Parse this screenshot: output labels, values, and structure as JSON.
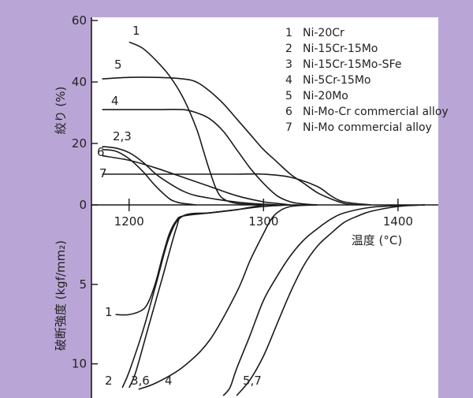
{
  "colors": {
    "background": "#b9a6d6",
    "plot": "#ffffff",
    "ink": "#1a1a1a"
  },
  "chart_data": [
    {
      "type": "line",
      "panel": "top",
      "ylabel": "絞り (%)",
      "ylim": [
        0,
        60
      ],
      "yticks": [
        "0",
        "20",
        "40",
        "60"
      ],
      "xlim": [
        1172,
        1430
      ],
      "legend": [
        {
          "num": "1",
          "name": "Ni-20Cr"
        },
        {
          "num": "2",
          "name": "Ni-15Cr-15Mo"
        },
        {
          "num": "3",
          "name": "Ni-15Cr-15Mo-SFe"
        },
        {
          "num": "4",
          "name": "Ni-5Cr-15Mo"
        },
        {
          "num": "5",
          "name": "Ni-20Mo"
        },
        {
          "num": "6",
          "name": "Ni-Mo-Cr commercial alloy"
        },
        {
          "num": "7",
          "name": "Ni-Mo commercial alloy"
        }
      ],
      "series": [
        {
          "name": "1",
          "label": "1",
          "x": [
            1200,
            1210,
            1220,
            1230,
            1240,
            1250,
            1255,
            1260,
            1265,
            1270,
            1280,
            1300
          ],
          "y": [
            53,
            51,
            47,
            42,
            35,
            25,
            18,
            11,
            5,
            2,
            0.5,
            0
          ]
        },
        {
          "name": "2",
          "label": "2,3",
          "x": [
            1180,
            1190,
            1200,
            1210,
            1220,
            1230,
            1235,
            1240,
            1250
          ],
          "y": [
            18,
            17.5,
            15,
            11,
            6,
            2,
            1,
            0.5,
            0
          ]
        },
        {
          "name": "3",
          "label": "",
          "x": [
            1180,
            1190,
            1200,
            1210,
            1220,
            1230,
            1240,
            1250,
            1270,
            1290,
            1310
          ],
          "y": [
            19,
            18.5,
            17,
            14,
            10,
            7,
            4.5,
            3,
            1.5,
            0.5,
            0
          ]
        },
        {
          "name": "4",
          "label": "4",
          "x": [
            1180,
            1200,
            1220,
            1240,
            1250,
            1260,
            1270,
            1280,
            1290,
            1300,
            1310,
            1320,
            1330,
            1340
          ],
          "y": [
            31,
            31,
            31,
            31,
            30,
            28,
            24,
            18,
            12,
            7,
            3,
            1,
            0.3,
            0
          ]
        },
        {
          "name": "5",
          "label": "5",
          "x": [
            1180,
            1200,
            1220,
            1240,
            1250,
            1260,
            1270,
            1280,
            1290,
            1300,
            1310,
            1320,
            1330,
            1340,
            1350,
            1360,
            1370
          ],
          "y": [
            41,
            41.5,
            41.5,
            41,
            40,
            37,
            33,
            28,
            23,
            18,
            14,
            10,
            7,
            4,
            2,
            0.5,
            0
          ]
        },
        {
          "name": "6",
          "label": "6",
          "x": [
            1180,
            1200,
            1220,
            1240,
            1260,
            1280,
            1300,
            1310,
            1320
          ],
          "y": [
            16,
            14.5,
            12,
            9,
            6,
            3,
            1,
            0.5,
            0
          ]
        },
        {
          "name": "7",
          "label": "7",
          "x": [
            1180,
            1200,
            1220,
            1240,
            1260,
            1280,
            1300,
            1320,
            1340,
            1350,
            1360,
            1380
          ],
          "y": [
            10,
            10,
            10,
            10,
            10,
            10,
            10,
            9,
            6,
            3,
            1,
            0
          ]
        }
      ]
    },
    {
      "type": "line",
      "panel": "bottom",
      "ylabel": "破断強度 (kgf/mm₂)",
      "xlabel": "温度 (°C)",
      "ylim": [
        0,
        12
      ],
      "yticks": [
        "5",
        "10"
      ],
      "xlim": [
        1172,
        1430
      ],
      "xticks": [
        "1200",
        "1300",
        "1400"
      ],
      "series": [
        {
          "name": "1",
          "label": "1",
          "x": [
            1190,
            1200,
            1210,
            1215,
            1220,
            1225,
            1230,
            1235,
            1240,
            1260,
            1280,
            1300,
            1320
          ],
          "y": [
            6.9,
            6.9,
            6.6,
            6.0,
            4.8,
            3.2,
            1.8,
            1.0,
            0.7,
            0.5,
            0.3,
            0.1,
            0
          ]
        },
        {
          "name": "2",
          "label": "2",
          "x": [
            1195,
            1200,
            1210,
            1220,
            1230,
            1240,
            1260,
            1280,
            1300
          ],
          "y": [
            11.5,
            10.5,
            8.0,
            5.0,
            2.0,
            0.7,
            0.5,
            0.3,
            0
          ]
        },
        {
          "name": "3",
          "label": "3,6",
          "x": [
            1200,
            1205,
            1215,
            1225,
            1235,
            1240,
            1260,
            1280,
            1300
          ],
          "y": [
            11.5,
            10.5,
            7.5,
            4.5,
            1.5,
            0.7,
            0.5,
            0.3,
            0
          ]
        },
        {
          "name": "4",
          "label": "4",
          "x": [
            1207,
            1220,
            1240,
            1260,
            1280,
            1290,
            1300,
            1305,
            1310,
            1320,
            1340
          ],
          "y": [
            11.6,
            11.2,
            10.2,
            8.5,
            5.5,
            3.5,
            1.8,
            1.0,
            0.5,
            0.1,
            0
          ]
        },
        {
          "name": "5",
          "label": "5,7",
          "x": [
            1270,
            1275,
            1280,
            1290,
            1300,
            1310,
            1320,
            1330,
            1340,
            1350,
            1360,
            1380,
            1400,
            1420
          ],
          "y": [
            12,
            11.5,
            10.3,
            8.2,
            6.0,
            4.5,
            3.2,
            2.2,
            1.5,
            0.9,
            0.5,
            0.15,
            0.05,
            0
          ]
        },
        {
          "name": "7",
          "label": "",
          "x": [
            1280,
            1290,
            1300,
            1310,
            1320,
            1330,
            1340,
            1350,
            1360,
            1370,
            1380,
            1400,
            1420
          ],
          "y": [
            12,
            11,
            9.5,
            7.5,
            5.5,
            3.8,
            2.6,
            1.8,
            1.1,
            0.7,
            0.4,
            0.1,
            0
          ]
        }
      ]
    }
  ]
}
